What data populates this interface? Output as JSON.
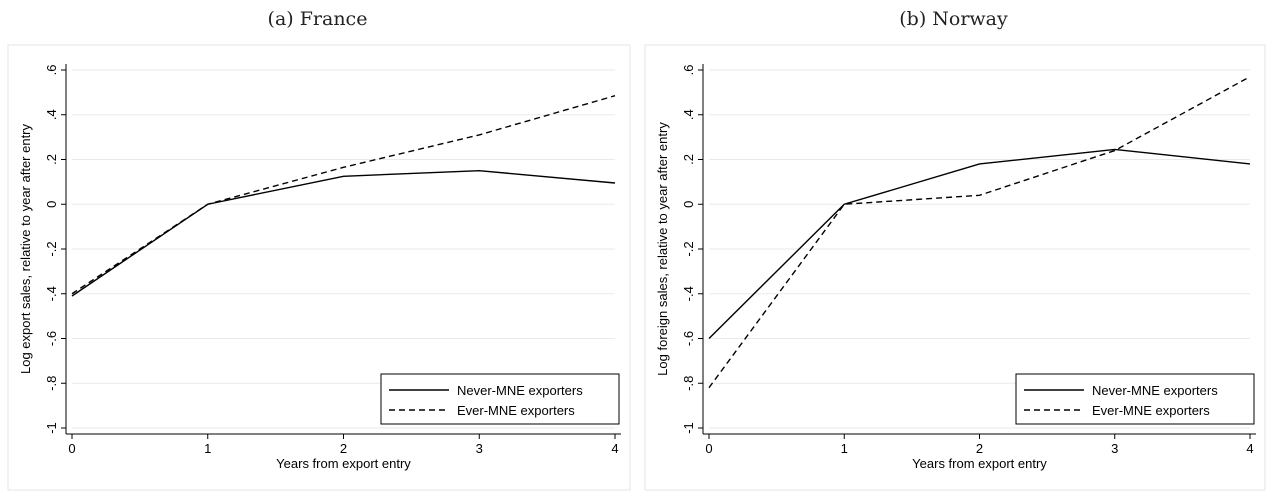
{
  "chart_data": [
    {
      "type": "line",
      "title": "(a) France",
      "xlabel": "Years from export entry",
      "ylabel": "Log export sales, relative to year after entry",
      "x": [
        0,
        1,
        2,
        3,
        4
      ],
      "xticks": [
        "0",
        "1",
        "2",
        "3",
        "4"
      ],
      "ylim": [
        -1,
        0.6
      ],
      "yticks": [
        "-1",
        "-.8",
        "-.6",
        "-.4",
        "-.2",
        "0",
        ".2",
        ".4",
        ".6"
      ],
      "ytick_values": [
        -1,
        -0.8,
        -0.6,
        -0.4,
        -0.2,
        0,
        0.2,
        0.4,
        0.6
      ],
      "grid": true,
      "legend_position": "bottom-right",
      "series": [
        {
          "name": "Never-MNE exporters",
          "style": "solid",
          "values": [
            -0.41,
            0,
            0.125,
            0.15,
            0.095
          ]
        },
        {
          "name": "Ever-MNE exporters",
          "style": "dashed",
          "values": [
            -0.4,
            0,
            0.165,
            0.31,
            0.485
          ]
        }
      ]
    },
    {
      "type": "line",
      "title": "(b) Norway",
      "xlabel": "Years from export entry",
      "ylabel": "Log foreign sales, relative to year after entry",
      "x": [
        0,
        1,
        2,
        3,
        4
      ],
      "xticks": [
        "0",
        "1",
        "2",
        "3",
        "4"
      ],
      "ylim": [
        -1,
        0.6
      ],
      "yticks": [
        "-1",
        "-.8",
        "-.6",
        "-.4",
        "-.2",
        "0",
        ".2",
        ".4",
        ".6"
      ],
      "ytick_values": [
        -1,
        -0.8,
        -0.6,
        -0.4,
        -0.2,
        0,
        0.2,
        0.4,
        0.6
      ],
      "grid": true,
      "legend_position": "bottom-right",
      "series": [
        {
          "name": "Never-MNE exporters",
          "style": "solid",
          "values": [
            -0.6,
            0,
            0.18,
            0.245,
            0.18
          ]
        },
        {
          "name": "Ever-MNE exporters",
          "style": "dashed",
          "values": [
            -0.82,
            0,
            0.04,
            0.24,
            0.57
          ]
        }
      ]
    }
  ]
}
